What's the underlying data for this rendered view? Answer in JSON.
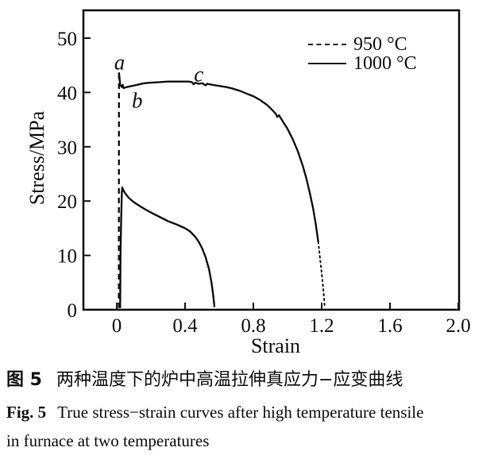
{
  "figure": {
    "caption_zh_label": "图 5",
    "caption_zh_text": "两种温度下的炉中高温拉伸真应力−应变曲线",
    "caption_en_label": "Fig. 5",
    "caption_en_text": "True stress−strain curves after high temperature tensile",
    "caption_en_text2": "in furnace at two temperatures"
  },
  "chart_data": {
    "type": "line",
    "title": "",
    "xlabel": "Strain",
    "ylabel": "Stress/MPa",
    "xlim": [
      -0.2,
      2.0
    ],
    "ylim": [
      0,
      55
    ],
    "grid": false,
    "x_ticks": [
      "0",
      "0.4",
      "0.8",
      "1.2",
      "1.6",
      "2.0"
    ],
    "x_tick_values": [
      0,
      0.4,
      0.8,
      1.2,
      1.6,
      2.0
    ],
    "y_ticks": [
      "0",
      "10",
      "20",
      "30",
      "40",
      "50"
    ],
    "y_tick_values": [
      0,
      10,
      20,
      30,
      40,
      50
    ],
    "line_color": "#111111",
    "legend": {
      "position": "top-right",
      "entries": [
        {
          "label": "950 °C",
          "style": "dashed"
        },
        {
          "label": "1000 °C",
          "style": "solid"
        }
      ]
    },
    "annotations": [
      {
        "text": "a",
        "x": 0.016,
        "y": 45.4
      },
      {
        "text": "b",
        "x": 0.12,
        "y": 38.4
      },
      {
        "text": "c",
        "x": 0.48,
        "y": 43.3
      }
    ],
    "series": [
      {
        "name": "950 °C",
        "temperature_c": 950,
        "segments": [
          {
            "style": "dashed",
            "points": [
              [
                0.012,
                0.3
              ],
              [
                0.013,
                43.7
              ]
            ]
          },
          {
            "style": "solid",
            "points": [
              [
                0.013,
                43.7
              ],
              [
                0.02,
                41.4
              ],
              [
                0.03,
                41.0
              ],
              [
                0.035,
                41.4
              ],
              [
                0.04,
                40.8
              ],
              [
                0.06,
                41.0
              ],
              [
                0.09,
                41.2
              ],
              [
                0.12,
                41.4
              ],
              [
                0.16,
                41.7
              ],
              [
                0.2,
                41.8
              ],
              [
                0.25,
                41.9
              ],
              [
                0.3,
                42.0
              ],
              [
                0.36,
                42.0
              ],
              [
                0.42,
                42.0
              ],
              [
                0.44,
                41.9
              ],
              [
                0.45,
                41.5
              ],
              [
                0.46,
                41.8
              ],
              [
                0.48,
                41.6
              ],
              [
                0.5,
                41.7
              ],
              [
                0.52,
                41.3
              ],
              [
                0.53,
                41.6
              ],
              [
                0.56,
                41.4
              ],
              [
                0.6,
                41.2
              ],
              [
                0.64,
                41.0
              ],
              [
                0.68,
                40.7
              ],
              [
                0.72,
                40.3
              ],
              [
                0.76,
                39.8
              ],
              [
                0.8,
                39.3
              ],
              [
                0.84,
                38.6
              ],
              [
                0.88,
                37.7
              ],
              [
                0.91,
                36.8
              ],
              [
                0.93,
                36.1
              ],
              [
                0.94,
                35.5
              ],
              [
                0.95,
                35.8
              ],
              [
                0.97,
                34.8
              ],
              [
                1.0,
                33.3
              ],
              [
                1.03,
                31.4
              ],
              [
                1.06,
                29.2
              ],
              [
                1.09,
                26.4
              ],
              [
                1.11,
                24.2
              ],
              [
                1.13,
                21.6
              ],
              [
                1.15,
                18.6
              ],
              [
                1.165,
                15.8
              ],
              [
                1.18,
                12.5
              ]
            ]
          },
          {
            "style": "dotted",
            "points": [
              [
                1.18,
                12.5
              ],
              [
                1.19,
                9.5
              ],
              [
                1.2,
                6.8
              ],
              [
                1.208,
                4.2
              ],
              [
                1.215,
                1.8
              ],
              [
                1.218,
                0.3
              ]
            ]
          }
        ]
      },
      {
        "name": "1000 °C",
        "temperature_c": 1000,
        "segments": [
          {
            "style": "solid",
            "points": [
              [
                0.02,
                0.3
              ],
              [
                0.022,
                10
              ],
              [
                0.026,
                17
              ],
              [
                0.03,
                21.5
              ],
              [
                0.032,
                22.5
              ],
              [
                0.04,
                21.9
              ],
              [
                0.05,
                21.4
              ],
              [
                0.07,
                20.6
              ],
              [
                0.1,
                19.8
              ],
              [
                0.13,
                19.2
              ],
              [
                0.16,
                18.6
              ],
              [
                0.2,
                17.9
              ],
              [
                0.25,
                17.1
              ],
              [
                0.3,
                16.3
              ],
              [
                0.35,
                15.7
              ],
              [
                0.4,
                15.0
              ],
              [
                0.43,
                14.4
              ],
              [
                0.46,
                13.4
              ],
              [
                0.48,
                12.5
              ],
              [
                0.5,
                11.3
              ],
              [
                0.52,
                9.7
              ],
              [
                0.54,
                7.5
              ],
              [
                0.555,
                5.0
              ],
              [
                0.565,
                2.6
              ],
              [
                0.572,
                0.5
              ]
            ]
          }
        ]
      }
    ]
  }
}
